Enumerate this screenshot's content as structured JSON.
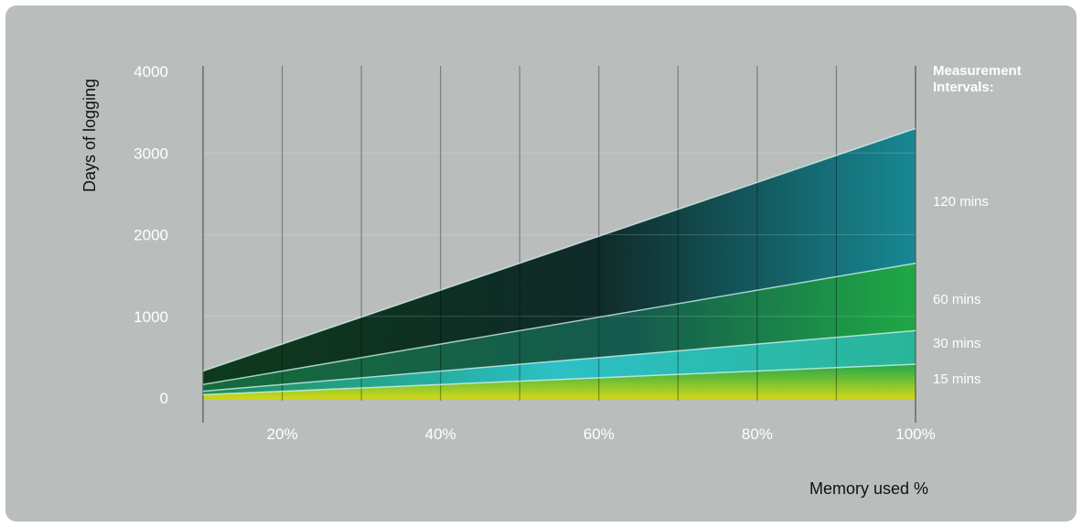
{
  "chart_data": {
    "type": "area",
    "title": "",
    "xlabel": "Memory used %",
    "ylabel": "Days of logging",
    "xlim": [
      10,
      100
    ],
    "ylim": [
      0,
      4000
    ],
    "x_ticks": [
      20,
      40,
      60,
      80,
      100
    ],
    "x_tick_labels": [
      "20%",
      "40%",
      "60%",
      "80%",
      "100%"
    ],
    "y_ticks": [
      0,
      1000,
      2000,
      3000,
      4000
    ],
    "y_tick_labels": [
      "0",
      "1000",
      "2000",
      "3000",
      "4000"
    ],
    "legend_title": "Measurement Intervals:",
    "x": [
      10,
      100
    ],
    "series": [
      {
        "name": "120 mins",
        "values": [
          330,
          3300
        ],
        "color": "#1a8a94"
      },
      {
        "name": "60 mins",
        "values": [
          165,
          1650
        ],
        "color": "#1fa84a"
      },
      {
        "name": "30 mins",
        "values": [
          83,
          825
        ],
        "color": "#2ab5a0"
      },
      {
        "name": "15 mins",
        "values": [
          41,
          413
        ],
        "color": "#6ccf3a"
      }
    ],
    "grid": "vertical"
  }
}
